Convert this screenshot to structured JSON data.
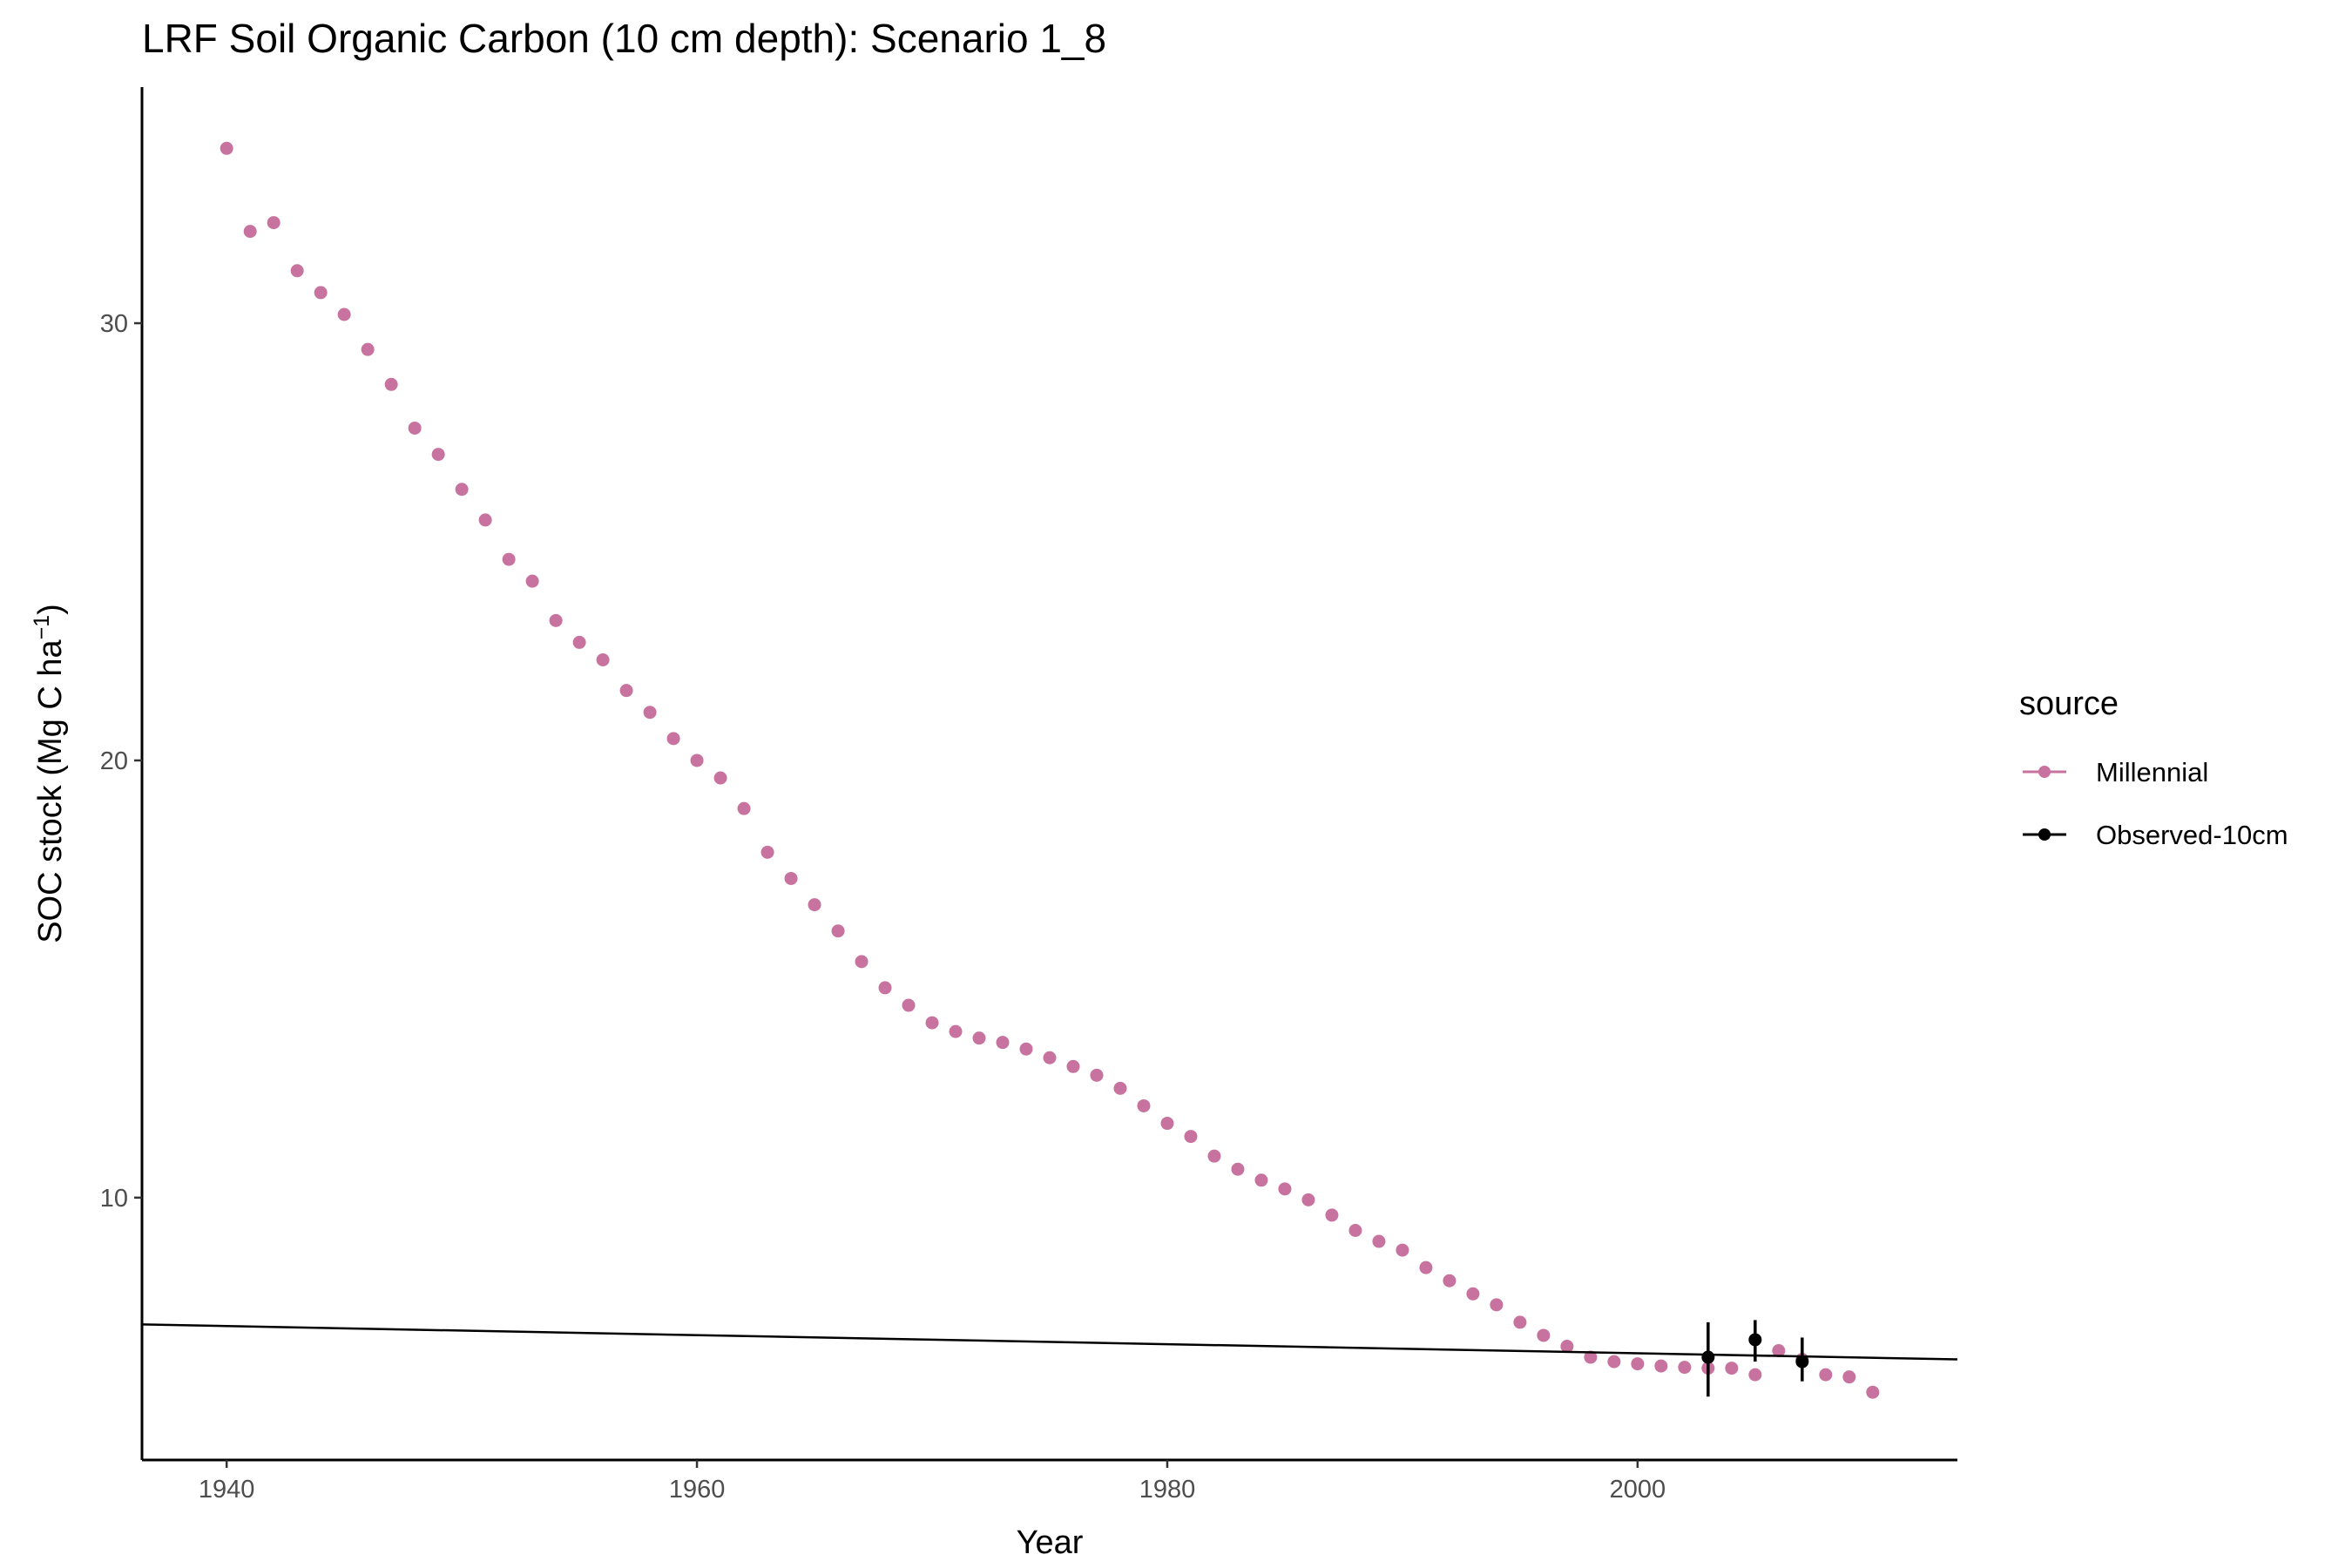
{
  "chart_data": {
    "type": "scatter",
    "title": "LRF Soil Organic Carbon (10 cm depth): Scenario  1_8",
    "xlabel": "Year",
    "ylabel_main": "SOC stock (Mg C ha",
    "ylabel_sup": "−1",
    "ylabel_close": ")",
    "xlim": [
      1936.4,
      2013.6
    ],
    "ylim": [
      4.0,
      35.4
    ],
    "x_ticks": [
      1940,
      1960,
      1980,
      2000
    ],
    "y_ticks": [
      10,
      20,
      30
    ],
    "grid": false,
    "legend": {
      "title": "source",
      "position": "right",
      "entries": [
        {
          "label": "Millennial",
          "color": "#c8739f"
        },
        {
          "label": "Observed-10cm",
          "color": "#000000"
        }
      ]
    },
    "series": [
      {
        "name": "Millennial",
        "color": "#c8739f",
        "points": [
          [
            1940,
            34.0
          ],
          [
            1941,
            32.1
          ],
          [
            1942,
            32.3
          ],
          [
            1943,
            31.2
          ],
          [
            1944,
            30.7
          ],
          [
            1945,
            30.2
          ],
          [
            1946,
            29.4
          ],
          [
            1947,
            28.6
          ],
          [
            1948,
            27.6
          ],
          [
            1949,
            27.0
          ],
          [
            1950,
            26.2
          ],
          [
            1951,
            25.5
          ],
          [
            1952,
            24.6
          ],
          [
            1953,
            24.1
          ],
          [
            1954,
            23.2
          ],
          [
            1955,
            22.7
          ],
          [
            1956,
            22.3
          ],
          [
            1957,
            21.6
          ],
          [
            1958,
            21.1
          ],
          [
            1959,
            20.5
          ],
          [
            1960,
            20.0
          ],
          [
            1961,
            19.6
          ],
          [
            1962,
            18.9
          ],
          [
            1963,
            17.9
          ],
          [
            1964,
            17.3
          ],
          [
            1965,
            16.7
          ],
          [
            1966,
            16.1
          ],
          [
            1967,
            15.4
          ],
          [
            1968,
            14.8
          ],
          [
            1969,
            14.4
          ],
          [
            1970,
            14.0
          ],
          [
            1971,
            13.8
          ],
          [
            1972,
            13.65
          ],
          [
            1973,
            13.55
          ],
          [
            1974,
            13.4
          ],
          [
            1975,
            13.2
          ],
          [
            1976,
            13.0
          ],
          [
            1977,
            12.8
          ],
          [
            1978,
            12.5
          ],
          [
            1979,
            12.1
          ],
          [
            1980,
            11.7
          ],
          [
            1981,
            11.4
          ],
          [
            1982,
            10.95
          ],
          [
            1983,
            10.65
          ],
          [
            1984,
            10.4
          ],
          [
            1985,
            10.2
          ],
          [
            1986,
            9.95
          ],
          [
            1987,
            9.6
          ],
          [
            1988,
            9.25
          ],
          [
            1989,
            9.0
          ],
          [
            1990,
            8.8
          ],
          [
            1991,
            8.4
          ],
          [
            1992,
            8.1
          ],
          [
            1993,
            7.8
          ],
          [
            1994,
            7.55
          ],
          [
            1995,
            7.15
          ],
          [
            1996,
            6.85
          ],
          [
            1997,
            6.6
          ],
          [
            1998,
            6.35
          ],
          [
            1999,
            6.25
          ],
          [
            2000,
            6.2
          ],
          [
            2001,
            6.15
          ],
          [
            2002,
            6.12
          ],
          [
            2003,
            6.1
          ],
          [
            2004,
            6.1
          ],
          [
            2005,
            5.95
          ],
          [
            2006,
            6.5
          ],
          [
            2007,
            6.3
          ],
          [
            2008,
            5.95
          ],
          [
            2009,
            5.9
          ],
          [
            2010,
            5.55
          ]
        ]
      },
      {
        "name": "Observed-10cm",
        "color": "#000000",
        "points": [
          {
            "x": 2003,
            "y": 6.35,
            "ymin": 5.45,
            "ymax": 7.15
          },
          {
            "x": 2005,
            "y": 6.75,
            "ymin": 6.25,
            "ymax": 7.2
          },
          {
            "x": 2007,
            "y": 6.25,
            "ymin": 5.8,
            "ymax": 6.8
          }
        ],
        "trend_line": {
          "x": [
            1936.4,
            2013.6
          ],
          "y": [
            7.1,
            6.3
          ]
        }
      }
    ]
  }
}
